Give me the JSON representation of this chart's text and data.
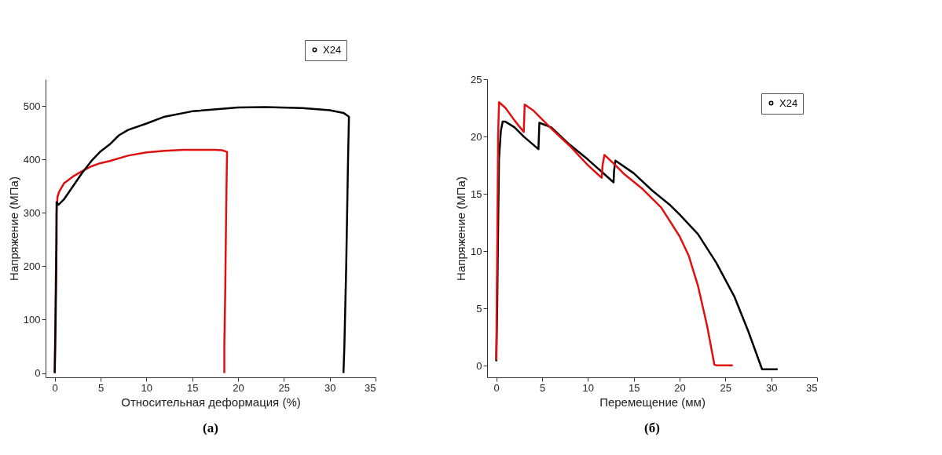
{
  "chart_data": [
    {
      "type": "line",
      "title": "(a)",
      "xlabel": "Относительная деформация (%)",
      "ylabel": "Напряжение (МПа)",
      "xlim": [
        -1,
        35
      ],
      "ylim": [
        -8,
        550
      ],
      "xticks": [
        0,
        5,
        10,
        15,
        20,
        25,
        30,
        35
      ],
      "yticks": [
        0,
        100,
        200,
        300,
        400,
        500
      ],
      "grid": false,
      "legend": "top",
      "marker": "none",
      "line_style": "solid",
      "series": [
        {
          "color": "#e01010",
          "x": [
            0,
            0.1,
            0.2,
            0.3,
            0.5,
            1,
            2,
            3,
            4,
            5,
            6,
            8,
            10,
            12,
            14,
            16,
            17.5,
            18.3,
            18.8,
            18.7,
            18.6,
            18.5,
            18.5
          ],
          "values": [
            0,
            150,
            300,
            330,
            340,
            355,
            368,
            378,
            387,
            393,
            397,
            407,
            413,
            416,
            418,
            418,
            418,
            417,
            414,
            300,
            150,
            50,
            0
          ]
        },
        {
          "name": "X24",
          "color": "#000000",
          "x": [
            0,
            0.1,
            0.2,
            0.2,
            0.4,
            1,
            2,
            3,
            4,
            5,
            6,
            7,
            8,
            10,
            12,
            15,
            20,
            23,
            27,
            30,
            31.5,
            32.1,
            32,
            31.8,
            31.6,
            31.5
          ],
          "values": [
            0,
            100,
            250,
            320,
            315,
            325,
            350,
            375,
            397,
            415,
            428,
            445,
            455,
            467,
            480,
            490,
            497,
            498,
            496,
            492,
            487,
            480,
            400,
            200,
            50,
            0
          ]
        }
      ]
    },
    {
      "type": "line",
      "title": "(б)",
      "xlabel": "Перемещение (мм)",
      "ylabel": "Напряжение (МПа)",
      "xlim": [
        -1,
        35
      ],
      "ylim": [
        -1,
        25
      ],
      "xticks": [
        0,
        5,
        10,
        15,
        20,
        25,
        30,
        35
      ],
      "yticks": [
        0,
        5,
        10,
        15,
        20,
        25
      ],
      "grid": false,
      "legend": "top right",
      "marker": "none",
      "line_style": "solid",
      "series": [
        {
          "name": "X24",
          "color": "#000000",
          "x": [
            0,
            0.1,
            0.2,
            0.3,
            0.5,
            0.7,
            1,
            2,
            3,
            4.6,
            4.65,
            4.7,
            6,
            8,
            10,
            12.8,
            12.85,
            13,
            15,
            17,
            19,
            20,
            22,
            24,
            26,
            27.5,
            29,
            30.7
          ],
          "values": [
            0.4,
            5,
            12,
            18,
            20.5,
            21.3,
            21.3,
            20.8,
            20,
            18.9,
            20,
            21.2,
            20.8,
            19.3,
            18,
            16,
            17,
            17.9,
            16.8,
            15.3,
            14,
            13.2,
            11.5,
            9,
            6,
            3,
            -0.3,
            -0.3
          ]
        },
        {
          "color": "#e01010",
          "x": [
            0,
            0.1,
            0.2,
            0.3,
            1,
            2,
            3,
            3.1,
            4,
            5,
            6,
            8,
            10,
            11.5,
            11.6,
            11.8,
            13,
            14,
            16,
            18,
            20,
            21,
            22,
            23,
            23.8,
            24,
            25.8
          ],
          "values": [
            0.5,
            10,
            20,
            23,
            22.5,
            21.4,
            20.4,
            22.8,
            22.3,
            21.5,
            20.7,
            19.2,
            17.5,
            16.4,
            17.5,
            18.4,
            17.5,
            16.7,
            15.4,
            13.8,
            11.3,
            9.6,
            7,
            3.5,
            0.1,
            0.05,
            0.05
          ]
        }
      ]
    }
  ]
}
